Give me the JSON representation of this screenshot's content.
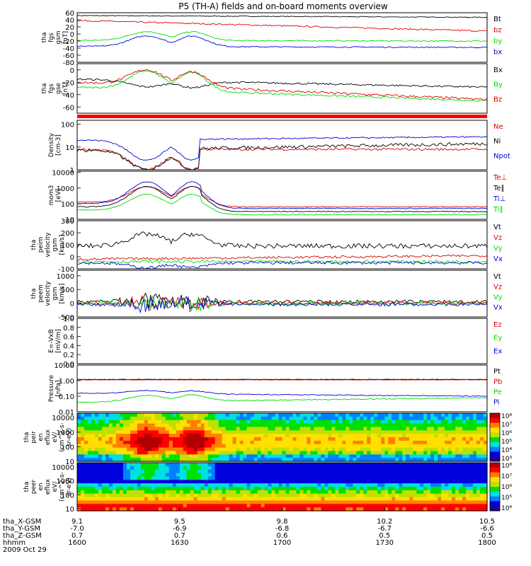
{
  "title": "P5 (TH-A) fields and on-board moments overview",
  "colors": {
    "black": "#000000",
    "red": "#dd0000",
    "green": "#00dd00",
    "blue": "#0000dd",
    "bar": "#ff0000"
  },
  "chart_data": [
    {
      "id": "p1",
      "type": "line",
      "ylabel": [
        "tha",
        "fgs",
        "gsm",
        "[nT]"
      ],
      "ylim": [
        -80,
        60
      ],
      "ticks": [
        60,
        40,
        20,
        0,
        -20,
        -40,
        -60,
        -80
      ],
      "series": [
        {
          "name": "Bt",
          "color": "black"
        },
        {
          "name": "bz",
          "color": "red"
        },
        {
          "name": "by",
          "color": "green"
        },
        {
          "name": "bx",
          "color": "blue"
        }
      ]
    },
    {
      "id": "p2",
      "type": "line",
      "ylabel": [
        "tha",
        "fgs",
        "gse",
        "[nT]"
      ],
      "ylim": [
        -70,
        10
      ],
      "ticks": [
        0,
        -20,
        -40,
        -60
      ],
      "series": [
        {
          "name": "Bx",
          "color": "black"
        },
        {
          "name": "By",
          "color": "green"
        },
        {
          "name": "Bz",
          "color": "red"
        }
      ]
    },
    {
      "id": "p3",
      "type": "line",
      "ylabel": [
        "Density",
        "[cm-3]"
      ],
      "ylim": [
        1,
        150
      ],
      "scale": "log",
      "ticks": [
        "100",
        "10",
        "1"
      ],
      "tick_values": [
        100,
        10,
        1
      ],
      "series": [
        {
          "name": "Ne",
          "color": "red"
        },
        {
          "name": "Ni",
          "color": "black"
        },
        {
          "name": "Npot",
          "color": "blue"
        }
      ]
    },
    {
      "id": "p4",
      "type": "line",
      "ylabel": [
        "mom3",
        "[eV]"
      ],
      "ylim": [
        10,
        12000
      ],
      "scale": "log",
      "ticks": [
        "10000",
        "1000",
        "100",
        "10"
      ],
      "tick_values": [
        10000,
        1000,
        100,
        10
      ],
      "series": [
        {
          "name": "Te⊥",
          "color": "red"
        },
        {
          "name": "Te∥",
          "color": "black"
        },
        {
          "name": "Ti⊥",
          "color": "blue"
        },
        {
          "name": "Ti∥",
          "color": "green"
        }
      ]
    },
    {
      "id": "p5",
      "type": "line",
      "ylabel": [
        "tha",
        "peim",
        "velocity",
        "gsm",
        "[km/s]"
      ],
      "ylim": [
        -100,
        300
      ],
      "ticks": [
        300,
        200,
        100,
        0,
        -100
      ],
      "series": [
        {
          "name": "Vt",
          "color": "black"
        },
        {
          "name": "Vz",
          "color": "red"
        },
        {
          "name": "Vy",
          "color": "green"
        },
        {
          "name": "Vx",
          "color": "blue"
        }
      ]
    },
    {
      "id": "p6",
      "type": "line",
      "ylabel": [
        "tha",
        "peem",
        "velocity",
        "gsm",
        "[km/s]"
      ],
      "ylim": [
        -500,
        1200
      ],
      "ticks": [
        1000,
        500,
        0,
        -500
      ],
      "series": [
        {
          "name": "Vt",
          "color": "black"
        },
        {
          "name": "Vz",
          "color": "red"
        },
        {
          "name": "Vy",
          "color": "green"
        },
        {
          "name": "Vx",
          "color": "blue"
        }
      ]
    },
    {
      "id": "p7",
      "type": "line",
      "ylabel": [
        "E=-VxB",
        "[mV/m]"
      ],
      "ylim": [
        0,
        1
      ],
      "ticks": [
        1.0,
        0.8,
        0.6,
        0.4,
        0.2,
        0.0
      ],
      "series": [
        {
          "name": "Ez",
          "color": "red"
        },
        {
          "name": "Ey",
          "color": "green"
        },
        {
          "name": "Ex",
          "color": "blue"
        }
      ]
    },
    {
      "id": "p8",
      "type": "line",
      "ylabel": [
        "Pressure",
        "[nPa]"
      ],
      "ylim": [
        0.01,
        10
      ],
      "scale": "log",
      "ticks": [
        "10.00",
        "1.00",
        "0.10",
        "0.01"
      ],
      "tick_values": [
        10,
        1,
        0.1,
        0.01
      ],
      "series": [
        {
          "name": "Pt",
          "color": "black"
        },
        {
          "name": "Pb",
          "color": "red"
        },
        {
          "name": "Pe",
          "color": "green"
        },
        {
          "name": "Pi",
          "color": "blue"
        }
      ]
    },
    {
      "id": "p9",
      "type": "heatmap",
      "ylabel": [
        "tha",
        "peir",
        "en",
        "eflux",
        "eV/",
        "(cm^2-s-",
        "sr-eV)"
      ],
      "ylim": [
        10,
        20000
      ],
      "scale": "log",
      "ticks": [
        "10000",
        "1000",
        "100",
        "10"
      ],
      "tick_values": [
        10000,
        1000,
        100,
        10
      ],
      "colorbar": [
        "10⁸",
        "10⁷",
        "10⁶",
        "10⁵",
        "10⁴",
        "10³"
      ]
    },
    {
      "id": "p10",
      "type": "heatmap",
      "ylabel": [
        "tha",
        "peer",
        "en",
        "eflux",
        "eV/",
        "(cm^2-s-",
        "sr-eV)"
      ],
      "ylim": [
        7,
        20000
      ],
      "scale": "log",
      "ticks": [
        "10000",
        "1000",
        "100",
        "10"
      ],
      "tick_values": [
        10000,
        1000,
        100,
        10
      ],
      "colorbar": [
        "10⁸",
        "10⁷",
        "10⁶",
        "10⁵",
        "10⁴"
      ]
    }
  ],
  "xaxis": {
    "rows": [
      {
        "label": "tha_X-GSM",
        "values": [
          "9.1",
          "9.5",
          "9.8",
          "10.2",
          "10.5"
        ]
      },
      {
        "label": "tha_Y-GSM",
        "values": [
          "-7.0",
          "-6.9",
          "-6.8",
          "-6.7",
          "-6.6"
        ]
      },
      {
        "label": "tha_Z-GSM",
        "values": [
          "0.7",
          "0.7",
          "0.6",
          "0.5",
          "0.5"
        ]
      },
      {
        "label": "hhmm",
        "values": [
          "1600",
          "1630",
          "1700",
          "1730",
          "1800"
        ]
      }
    ],
    "date": "2009 Oct 29"
  }
}
